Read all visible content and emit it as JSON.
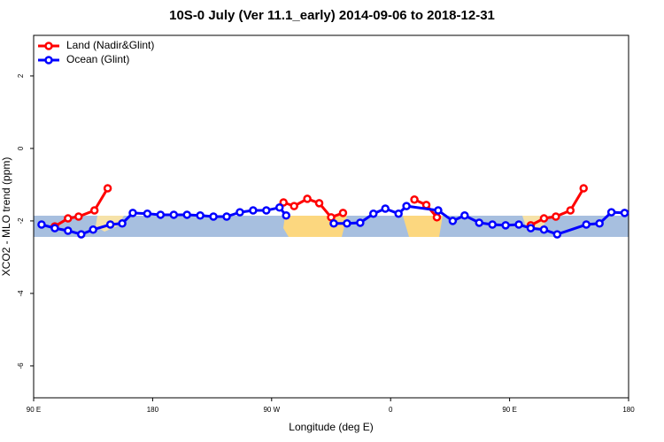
{
  "chart_data": {
    "type": "line",
    "title": "10S-0 July (Ver 11.1_early)   2014-09-06 to 2018-12-31",
    "x_label": "Longitude (deg E)",
    "y_label": "XCO2 - MLO trend (ppm)",
    "xlim": [
      90,
      540
    ],
    "ylim": [
      -6.88,
      3.12
    ],
    "xticks": [
      {
        "value": 90,
        "label": "90 E"
      },
      {
        "value": 180,
        "label": "180"
      },
      {
        "value": 270,
        "label": "90 W"
      },
      {
        "value": 360,
        "label": "0"
      },
      {
        "value": 450,
        "label": "90 E"
      },
      {
        "value": 540,
        "label": "180"
      }
    ],
    "yticks": [
      -6,
      -4,
      -2,
      0,
      2
    ],
    "legend_position": "top-left",
    "series": [
      {
        "name": "Land (Nadir&Glint)",
        "color": "#ff0000",
        "x": [
          106,
          116,
          124,
          136,
          146,
          null,
          279,
          287,
          297,
          306,
          315,
          324,
          null,
          378,
          387,
          395,
          null,
          466,
          476,
          485,
          496,
          506
        ],
        "values": [
          -2.15,
          -1.93,
          -1.88,
          -1.71,
          -1.1,
          null,
          -1.49,
          -1.59,
          -1.39,
          -1.51,
          -1.9,
          -1.78,
          null,
          -1.41,
          -1.56,
          -1.9,
          null,
          -2.12,
          -1.93,
          -1.88,
          -1.71,
          -1.1
        ]
      },
      {
        "name": "Ocean (Glint)",
        "color": "#0000ff",
        "x": [
          96,
          106,
          116,
          126,
          135,
          148,
          157,
          165,
          176,
          186,
          196,
          206,
          216,
          226,
          236,
          246,
          256,
          266,
          276,
          281,
          null,
          317,
          327,
          337,
          347,
          356,
          366,
          372,
          396,
          407,
          416,
          427,
          437,
          447,
          457,
          466,
          476,
          486,
          508,
          518,
          527,
          537
        ],
        "values": [
          -2.1,
          -2.2,
          -2.27,
          -2.37,
          -2.24,
          -2.1,
          -2.07,
          -1.78,
          -1.8,
          -1.83,
          -1.83,
          -1.83,
          -1.85,
          -1.88,
          -1.88,
          -1.76,
          -1.71,
          -1.71,
          -1.63,
          -1.85,
          null,
          -2.07,
          -2.07,
          -2.05,
          -1.8,
          -1.66,
          -1.8,
          -1.59,
          -1.71,
          -2.0,
          -1.85,
          -2.05,
          -2.1,
          -2.12,
          -2.1,
          -2.2,
          -2.24,
          -2.37,
          -2.1,
          -2.07,
          -1.76,
          -1.78
        ]
      }
    ]
  }
}
